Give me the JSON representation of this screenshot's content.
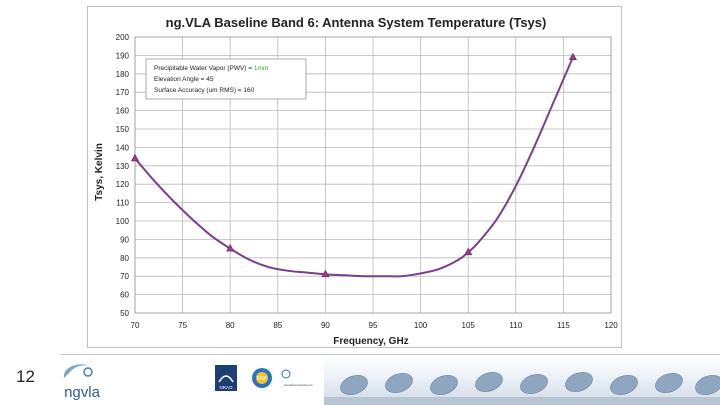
{
  "slide": {
    "page_number": "12"
  },
  "footer": {
    "logo_text": "ngvla",
    "partners": [
      "NRAO",
      "NSF",
      "Associated Universities Inc."
    ]
  },
  "chart_data": {
    "type": "line",
    "title": "ng.VLA Baseline Band 6:   Antenna System Temperature (Tsys)",
    "xlabel": "Frequency, GHz",
    "ylabel": "Tsys, Kelvin",
    "xlim": [
      70,
      120
    ],
    "ylim": [
      50,
      200
    ],
    "xticks": [
      70,
      75,
      80,
      85,
      90,
      95,
      100,
      105,
      110,
      115,
      120
    ],
    "yticks": [
      50,
      60,
      70,
      80,
      90,
      100,
      110,
      120,
      130,
      140,
      150,
      160,
      170,
      180,
      190,
      200
    ],
    "grid": true,
    "series": [
      {
        "name": "Tsys",
        "color": "#7b3f8f",
        "x": [
          70,
          80,
          90,
          105,
          116
        ],
        "y": [
          134,
          85,
          71,
          83,
          189
        ],
        "curve": {
          "x": [
            70,
            72,
            74,
            76,
            78,
            80,
            82,
            84,
            86,
            88,
            90,
            92,
            94,
            96,
            98,
            100,
            102,
            104,
            105,
            106,
            108,
            110,
            112,
            114,
            116
          ],
          "y": [
            134,
            122,
            111,
            101,
            92,
            85,
            79,
            75,
            73,
            72,
            71,
            70.5,
            70,
            70,
            70,
            71.5,
            74,
            79,
            83,
            88,
            101,
            119,
            141,
            165,
            189
          ]
        }
      }
    ],
    "legend_box": {
      "position": "top-left",
      "lines": [
        {
          "label": "Precipitable Water Vapor (PWV) = ",
          "value": "1mm",
          "value_color": "#3aa63a"
        },
        {
          "label": "Elevation Angle = ",
          "value": "45",
          "value_color": "#222222"
        },
        {
          "label": "Surface Accuracy (um RMS) = ",
          "value": "160",
          "value_color": "#222222"
        }
      ]
    }
  }
}
